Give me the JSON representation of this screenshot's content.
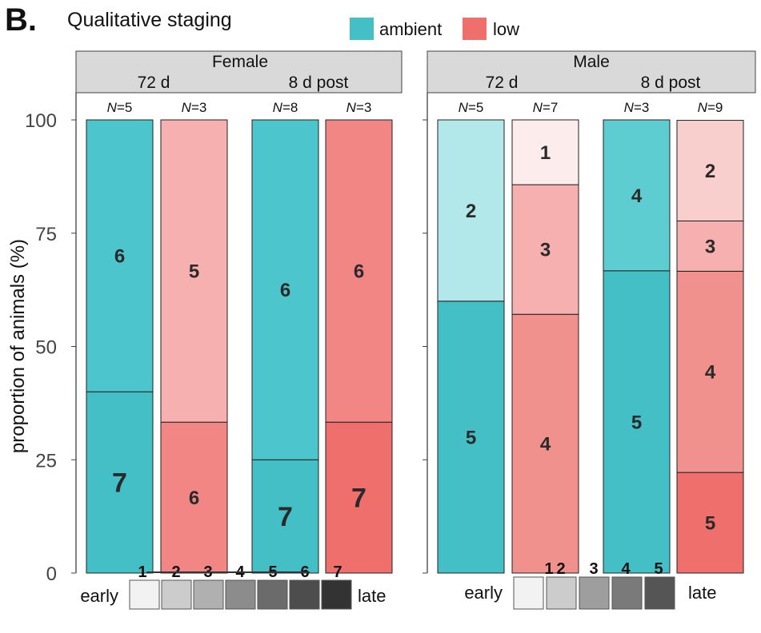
{
  "panel_label": "B.",
  "chart_data": {
    "type": "bar",
    "stacked": true,
    "title": "Qualitative staging",
    "ylabel": "proportion of animals (%)",
    "ylim": [
      0,
      100
    ],
    "yticks": [
      0,
      25,
      50,
      75,
      100
    ],
    "legend": {
      "placement": "top",
      "entries": [
        {
          "label": "ambient",
          "color": "#45bfc6"
        },
        {
          "label": "low",
          "color": "#ef6f6c"
        }
      ]
    },
    "panels": [
      {
        "name": "Female",
        "timepoints": [
          "72 d",
          "8 d post"
        ],
        "bars": [
          {
            "timepoint": "72 d",
            "treatment": "ambient",
            "n_label": "N",
            "n_value": "=5",
            "segments": [
              {
                "stage": "7",
                "value": 40
              },
              {
                "stage": "6",
                "value": 60
              }
            ]
          },
          {
            "timepoint": "72 d",
            "treatment": "low",
            "n_label": "N",
            "n_value": "=3",
            "segments": [
              {
                "stage": "6",
                "value": 33.3
              },
              {
                "stage": "5",
                "value": 66.7
              }
            ]
          },
          {
            "timepoint": "8 d post",
            "treatment": "ambient",
            "n_label": "N",
            "n_value": "=8",
            "segments": [
              {
                "stage": "7",
                "value": 25
              },
              {
                "stage": "6",
                "value": 75
              }
            ]
          },
          {
            "timepoint": "8 d post",
            "treatment": "low",
            "n_label": "N",
            "n_value": "=3",
            "segments": [
              {
                "stage": "7",
                "value": 33.3
              },
              {
                "stage": "6",
                "value": 66.7
              }
            ]
          }
        ],
        "stage_scale": {
          "start_label": "early",
          "end_label": "late",
          "stages": [
            "1",
            "2",
            "3",
            "4",
            "5",
            "6",
            "7"
          ]
        }
      },
      {
        "name": "Male",
        "timepoints": [
          "72 d",
          "8 d post"
        ],
        "bars": [
          {
            "timepoint": "72 d",
            "treatment": "ambient",
            "n_label": "N",
            "n_value": "=5",
            "segments": [
              {
                "stage": "5",
                "value": 60
              },
              {
                "stage": "2",
                "value": 40
              }
            ]
          },
          {
            "timepoint": "72 d",
            "treatment": "low",
            "n_label": "N",
            "n_value": "=7",
            "segments": [
              {
                "stage": "4",
                "value": 57.1
              },
              {
                "stage": "3",
                "value": 28.6
              },
              {
                "stage": "1",
                "value": 14.3
              }
            ]
          },
          {
            "timepoint": "8 d post",
            "treatment": "ambient",
            "n_label": "N",
            "n_value": "=3",
            "segments": [
              {
                "stage": "5",
                "value": 66.7
              },
              {
                "stage": "4",
                "value": 33.3
              }
            ]
          },
          {
            "timepoint": "8 d post",
            "treatment": "low",
            "n_label": "N",
            "n_value": "=9",
            "segments": [
              {
                "stage": "5",
                "value": 22.2
              },
              {
                "stage": "4",
                "value": 44.4
              },
              {
                "stage": "3",
                "value": 11.1
              },
              {
                "stage": "2",
                "value": 22.2
              }
            ]
          }
        ],
        "stage_scale": {
          "start_label": "early",
          "end_label": "late",
          "stages": [
            "1",
            "2",
            "3",
            "4",
            "5"
          ]
        }
      }
    ],
    "stage_colors": {
      "ambient": {
        "1": "#e8f7f8",
        "2": "#b3e8eb",
        "3": "#8fd9dd",
        "4": "#5dcdd1",
        "5": "#45bfc6",
        "6": "#4cc6cc",
        "7": "#45bfc6"
      },
      "low": {
        "1": "#fcecec",
        "2": "#f8cfcd",
        "3": "#f5b0af",
        "4": "#f0918e",
        "5": "#f5b0af",
        "6": "#f28684",
        "7": "#ef6f6c"
      }
    },
    "female_colors": {
      "ambient": {
        "6": "#4cc6cc",
        "7": "#45bfc6"
      },
      "low": {
        "5": "#f5b0af",
        "6": "#f28684",
        "7": "#ef6f6c"
      }
    },
    "male_colors": {
      "ambient": {
        "2": "#b3e8eb",
        "4": "#5dcdd1",
        "5": "#45bfc6"
      },
      "low": {
        "1": "#fcecec",
        "2": "#f8cfcd",
        "3": "#f5b0af",
        "4": "#f0918e",
        "5": "#ef6f6c"
      }
    },
    "stage_scale_colors": {
      "female": [
        "#f2f2f2",
        "#cccccc",
        "#b0b0b0",
        "#8c8c8c",
        "#6b6b6b",
        "#4d4d4d",
        "#333333"
      ],
      "male": [
        "#f2f2f2",
        "#cccccc",
        "#9e9e9e",
        "#7a7a7a",
        "#555555"
      ]
    }
  }
}
